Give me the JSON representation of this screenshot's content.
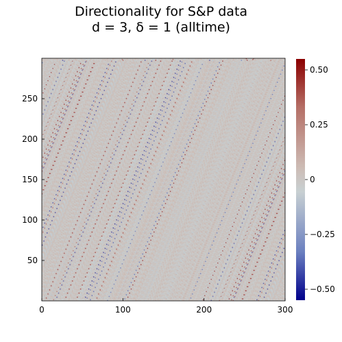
{
  "chart_data": {
    "type": "heatmap",
    "title": [
      "Directionality for S&P data",
      "d = 3, δ = 1 (alltime)"
    ],
    "xlabel": "",
    "ylabel": "",
    "xlim": [
      0,
      300
    ],
    "ylim": [
      0,
      300
    ],
    "x_ticks": [
      0,
      100,
      200,
      300
    ],
    "y_ticks": [
      50,
      100,
      150,
      200,
      250
    ],
    "x_tick_labels": [
      "0",
      "100",
      "200",
      "300"
    ],
    "y_tick_labels": [
      "50",
      "100",
      "150",
      "200",
      "250"
    ],
    "grid": false,
    "colorbar": {
      "range": [
        -0.55,
        0.55
      ],
      "ticks": [
        -0.5,
        -0.25,
        0,
        0.25,
        0.5
      ],
      "tick_labels": [
        "−0.50",
        "−0.25",
        "0",
        "0.25",
        "0.50"
      ],
      "colormap": [
        "#00008b",
        "#6b80c0",
        "#c8d0d2",
        "#cdbcb5",
        "#b56f66",
        "#8b0000"
      ]
    },
    "matrix_size": [
      298,
      298
    ],
    "value_distribution": "dense fine-grained noise centred near 0, mostly within ±0.25, occasional extremes to ±0.5"
  }
}
